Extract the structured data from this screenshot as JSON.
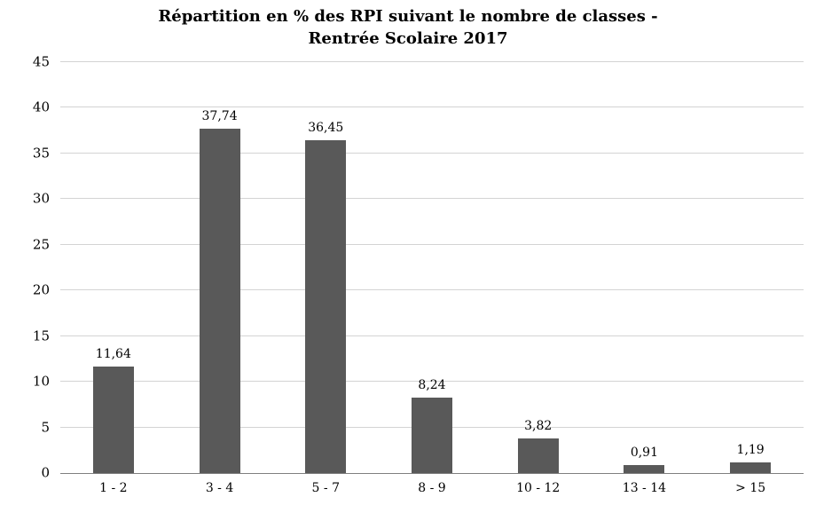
{
  "chart_data": {
    "type": "bar",
    "title": "Répartition en % des RPI suivant le nombre de classes - Rentrée Scolaire 2017",
    "title_lines": [
      "Répartition en % des RPI suivant le nombre de classes -",
      "Rentrée Scolaire 2017"
    ],
    "categories": [
      "1 - 2",
      "3 - 4",
      "5 - 7",
      "8 - 9",
      "10 - 12",
      "13 - 14",
      "> 15"
    ],
    "values": [
      11.64,
      37.74,
      36.45,
      8.24,
      3.82,
      0.91,
      1.19
    ],
    "value_labels": [
      "11,64",
      "37,74",
      "36,45",
      "8,24",
      "3,82",
      "0,91",
      "1,19"
    ],
    "xlabel": "",
    "ylabel": "",
    "ylim": [
      0,
      45
    ],
    "ytick_step": 5,
    "yticks": [
      0,
      5,
      10,
      15,
      20,
      25,
      30,
      35,
      40,
      45
    ],
    "grid": true,
    "legend": "none",
    "bar_color": "#595959",
    "gridline_color": "#d3d3d3",
    "axis_color": "#7f7f7f",
    "background_color": "#ffffff"
  }
}
